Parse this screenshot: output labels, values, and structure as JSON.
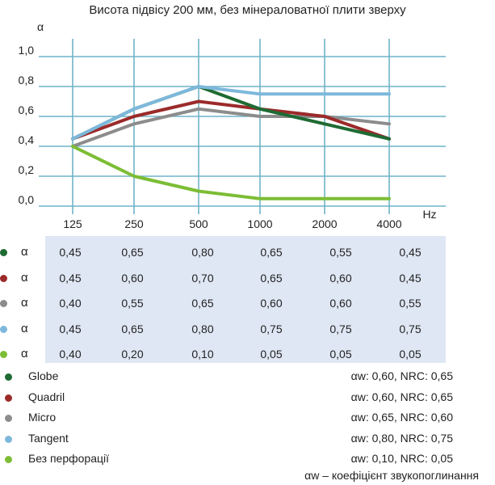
{
  "chart_data": {
    "type": "line",
    "title": "Висота підвісу 200 мм, без мінераловатної плити зверху",
    "ylabel": "α",
    "xlabel": "Hz",
    "categories": [
      "125",
      "250",
      "500",
      "1000",
      "2000",
      "4000"
    ],
    "y_ticks": [
      "1,0",
      "0,8",
      "0,6",
      "0,4",
      "0,2",
      "0,0"
    ],
    "ylim": [
      0,
      1.0
    ],
    "grid": true,
    "series": [
      {
        "name": "Globe",
        "color": "#1e6b33",
        "values": [
          0.45,
          0.65,
          0.8,
          0.65,
          0.55,
          0.45
        ]
      },
      {
        "name": "Quadril",
        "color": "#9b2a2a",
        "values": [
          0.45,
          0.6,
          0.7,
          0.65,
          0.6,
          0.45
        ]
      },
      {
        "name": "Micro",
        "color": "#8c8c8c",
        "values": [
          0.4,
          0.55,
          0.65,
          0.6,
          0.6,
          0.55
        ]
      },
      {
        "name": "Tangent",
        "color": "#7db8dc",
        "values": [
          0.45,
          0.65,
          0.8,
          0.75,
          0.75,
          0.75
        ]
      },
      {
        "name": "Без перфорації",
        "color": "#7cbd35",
        "values": [
          0.4,
          0.2,
          0.1,
          0.05,
          0.05,
          0.05
        ]
      }
    ]
  },
  "table": {
    "symbol": "α",
    "rows": [
      [
        "0,45",
        "0,65",
        "0,80",
        "0,65",
        "0,55",
        "0,45"
      ],
      [
        "0,45",
        "0,60",
        "0,70",
        "0,65",
        "0,60",
        "0,45"
      ],
      [
        "0,40",
        "0,55",
        "0,65",
        "0,60",
        "0,60",
        "0,55"
      ],
      [
        "0,45",
        "0,65",
        "0,80",
        "0,75",
        "0,75",
        "0,75"
      ],
      [
        "0,40",
        "0,20",
        "0,10",
        "0,05",
        "0,05",
        "0,05"
      ]
    ]
  },
  "legend": [
    {
      "name": "Globe",
      "rating": "αw: 0,60, NRC: 0,65"
    },
    {
      "name": "Quadril",
      "rating": "αw: 0,60, NRC: 0,65"
    },
    {
      "name": "Micro",
      "rating": "αw: 0,65, NRC: 0,60"
    },
    {
      "name": "Tangent",
      "rating": "αw: 0,80, NRC: 0,75"
    },
    {
      "name": "Без перфорації",
      "rating": "αw: 0,10, NRC: 0,05"
    }
  ],
  "footnote": "αw – коефіцієнт звукопоглинання"
}
